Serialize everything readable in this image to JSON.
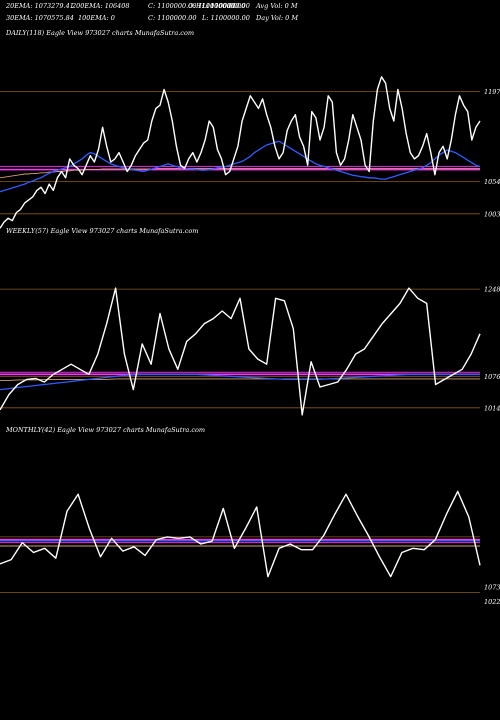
{
  "header": {
    "row1": [
      "20EMA: 1073279.41",
      "200EMA: 106408",
      "C: 1100000.00",
      "O: 1100000.00",
      "H: 1100000.00",
      "L: 1100000.00",
      "Avg Vol: 0  M"
    ],
    "row2": [
      "30EMA: 1070575.84",
      "100EMA: 0",
      "C: 1100000.00",
      "L: 1100000.00",
      "Day Vol: 0  M"
    ]
  },
  "panels": [
    {
      "label": "DAILY(118) Eagle   View  973027 charts MunafaSutra.com"
    },
    {
      "label": "WEEKLY(57) Eagle   View  973027 charts MunafaSutra.com"
    },
    {
      "label": "MONTHLY(42) Eagle   View  973027 charts MunafaSutra.com"
    }
  ],
  "colors": {
    "background": "#000000",
    "price": "#ffffff",
    "ema_blue": "#2f5cff",
    "ema_magenta": "#ff33ff",
    "ema_orange": "#d2a070",
    "grid": "#8a5a1a"
  },
  "chart_data": [
    {
      "type": "line",
      "ylim": [
        990,
        1215
      ],
      "yticks": [
        {
          "label": "1197",
          "value": 1197
        },
        {
          "label": "1054",
          "value": 1054
        },
        {
          "label": "1003",
          "value": 1003
        }
      ],
      "price": [
        980,
        990,
        996,
        992,
        1005,
        1010,
        1020,
        1025,
        1030,
        1040,
        1045,
        1035,
        1050,
        1040,
        1060,
        1070,
        1060,
        1090,
        1080,
        1075,
        1065,
        1080,
        1095,
        1085,
        1105,
        1140,
        1110,
        1085,
        1090,
        1100,
        1085,
        1070,
        1080,
        1095,
        1105,
        1115,
        1120,
        1150,
        1170,
        1175,
        1200,
        1180,
        1150,
        1110,
        1080,
        1075,
        1090,
        1100,
        1085,
        1100,
        1120,
        1150,
        1140,
        1105,
        1090,
        1065,
        1070,
        1090,
        1110,
        1150,
        1170,
        1190,
        1180,
        1170,
        1185,
        1160,
        1140,
        1110,
        1090,
        1100,
        1135,
        1150,
        1160,
        1125,
        1110,
        1080,
        1165,
        1155,
        1120,
        1140,
        1190,
        1180,
        1100,
        1080,
        1090,
        1120,
        1160,
        1140,
        1120,
        1080,
        1070,
        1150,
        1200,
        1220,
        1210,
        1170,
        1150,
        1200,
        1170,
        1130,
        1100,
        1090,
        1095,
        1110,
        1130,
        1100,
        1065,
        1100,
        1110,
        1090,
        1120,
        1160,
        1190,
        1175,
        1165,
        1120,
        1140,
        1150
      ],
      "ema_blue": [
        1038,
        1040,
        1042,
        1044,
        1046,
        1048,
        1050,
        1053,
        1055,
        1058,
        1060,
        1064,
        1067,
        1070,
        1072,
        1074,
        1076,
        1078,
        1082,
        1086,
        1090,
        1096,
        1100,
        1098,
        1094,
        1090,
        1086,
        1082,
        1080,
        1078,
        1076,
        1074,
        1073,
        1072,
        1071,
        1070,
        1072,
        1074,
        1076,
        1078,
        1080,
        1082,
        1080,
        1078,
        1076,
        1075,
        1074,
        1074,
        1073,
        1072,
        1072,
        1073,
        1074,
        1076,
        1077,
        1078,
        1080,
        1082,
        1084,
        1086,
        1090,
        1094,
        1100,
        1104,
        1108,
        1112,
        1114,
        1116,
        1118,
        1114,
        1110,
        1106,
        1102,
        1098,
        1094,
        1090,
        1086,
        1082,
        1080,
        1078,
        1076,
        1074,
        1072,
        1070,
        1068,
        1066,
        1064,
        1063,
        1062,
        1061,
        1060,
        1060,
        1059,
        1058,
        1058,
        1060,
        1062,
        1064,
        1066,
        1068,
        1070,
        1072,
        1074,
        1076,
        1080,
        1084,
        1090,
        1096,
        1100,
        1104,
        1102,
        1100,
        1096,
        1092,
        1088,
        1084,
        1080,
        1078
      ],
      "ema_orange": [
        1060,
        1061,
        1062,
        1063,
        1064,
        1065,
        1066,
        1066,
        1067,
        1067,
        1068,
        1068,
        1069,
        1069,
        1070,
        1070,
        1071,
        1071,
        1072,
        1072,
        1072,
        1073,
        1073,
        1073,
        1073,
        1074,
        1074,
        1074,
        1074,
        1074,
        1074,
        1074,
        1074,
        1074,
        1074,
        1074,
        1074,
        1074,
        1075,
        1075,
        1075,
        1075,
        1075,
        1075,
        1075,
        1075,
        1075,
        1075,
        1075,
        1075,
        1075,
        1075,
        1075,
        1075,
        1075,
        1075,
        1075,
        1075,
        1075,
        1075,
        1075,
        1075,
        1075,
        1075,
        1075,
        1075,
        1075,
        1075,
        1075,
        1075,
        1075,
        1075,
        1075,
        1075,
        1075,
        1075,
        1075,
        1075,
        1075,
        1075,
        1075,
        1075,
        1075,
        1075,
        1075,
        1075,
        1075,
        1075,
        1075,
        1075,
        1075,
        1075,
        1075,
        1075,
        1075,
        1075,
        1075,
        1075,
        1075,
        1075,
        1075,
        1075,
        1075,
        1075,
        1075,
        1075,
        1075,
        1075,
        1075,
        1075,
        1075,
        1075,
        1075,
        1075,
        1075,
        1075,
        1075,
        1075
      ],
      "ema_magenta_level": 1073,
      "ema_magenta2_level": 1078,
      "gridlines": [
        1197,
        1054,
        1003
      ]
    },
    {
      "type": "line",
      "ylim": [
        990,
        1270
      ],
      "yticks": [
        {
          "label": "1248",
          "value": 1248
        },
        {
          "label": "1076",
          "value": 1076
        },
        {
          "label": "1014",
          "value": 1014
        }
      ],
      "price": [
        1010,
        1040,
        1060,
        1070,
        1072,
        1065,
        1080,
        1090,
        1100,
        1090,
        1080,
        1120,
        1180,
        1250,
        1120,
        1050,
        1140,
        1100,
        1200,
        1130,
        1090,
        1145,
        1160,
        1180,
        1190,
        1205,
        1190,
        1230,
        1130,
        1110,
        1100,
        1230,
        1225,
        1170,
        1000,
        1105,
        1055,
        1060,
        1065,
        1090,
        1120,
        1130,
        1155,
        1180,
        1200,
        1220,
        1250,
        1230,
        1220,
        1060,
        1070,
        1080,
        1090,
        1120,
        1160
      ],
      "ema_blue": [
        1050,
        1052,
        1054,
        1056,
        1058,
        1060,
        1062,
        1064,
        1066,
        1068,
        1070,
        1072,
        1074,
        1076,
        1078,
        1079,
        1080,
        1080,
        1080,
        1080,
        1080,
        1080,
        1080,
        1079,
        1078,
        1077,
        1076,
        1075,
        1074,
        1073,
        1072,
        1071,
        1070,
        1070,
        1070,
        1070,
        1070,
        1071,
        1072,
        1073,
        1074,
        1075,
        1076,
        1077,
        1078,
        1079,
        1080,
        1080,
        1080,
        1080,
        1080,
        1080,
        1080,
        1080,
        1080
      ],
      "ema_orange": [
        1068,
        1068,
        1069,
        1069,
        1069,
        1070,
        1070,
        1070,
        1070,
        1070,
        1070,
        1070,
        1070,
        1071,
        1071,
        1071,
        1071,
        1071,
        1071,
        1071,
        1071,
        1071,
        1071,
        1071,
        1071,
        1071,
        1071,
        1071,
        1071,
        1071,
        1071,
        1071,
        1071,
        1071,
        1071,
        1071,
        1071,
        1071,
        1071,
        1071,
        1071,
        1071,
        1071,
        1071,
        1071,
        1071,
        1071,
        1071,
        1071,
        1071,
        1071,
        1071,
        1071,
        1071,
        1071
      ],
      "ema_magenta_level": 1080,
      "ema_magenta2_level": 1084,
      "gridlines": [
        1248,
        1076,
        1014
      ]
    },
    {
      "type": "line",
      "ylim": [
        1000,
        1450
      ],
      "yticks": [
        {
          "label": "1073",
          "value": 1073
        },
        {
          "label": "1022",
          "value": 1022
        }
      ],
      "price": [
        1155,
        1170,
        1230,
        1195,
        1210,
        1175,
        1340,
        1400,
        1280,
        1180,
        1245,
        1200,
        1215,
        1185,
        1240,
        1250,
        1245,
        1250,
        1225,
        1235,
        1350,
        1210,
        1280,
        1355,
        1110,
        1210,
        1225,
        1205,
        1205,
        1255,
        1330,
        1400,
        1325,
        1255,
        1180,
        1110,
        1195,
        1210,
        1205,
        1240,
        1330,
        1410,
        1320,
        1150
      ],
      "ema_blue": [
        1236,
        1236,
        1236,
        1236,
        1236,
        1236,
        1236,
        1236,
        1236,
        1236,
        1236,
        1236,
        1236,
        1236,
        1236,
        1236,
        1236,
        1236,
        1236,
        1236,
        1236,
        1236,
        1236,
        1236,
        1236,
        1236,
        1236,
        1236,
        1236,
        1236,
        1236,
        1236,
        1236,
        1236,
        1236,
        1236,
        1236,
        1236,
        1236,
        1236,
        1236,
        1236,
        1236,
        1236
      ],
      "ema_orange": [
        1218,
        1218,
        1218,
        1218,
        1218,
        1218,
        1218,
        1218,
        1218,
        1218,
        1218,
        1218,
        1218,
        1218,
        1218,
        1218,
        1218,
        1218,
        1218,
        1218,
        1218,
        1218,
        1218,
        1218,
        1218,
        1218,
        1218,
        1218,
        1218,
        1218,
        1218,
        1218,
        1218,
        1218,
        1218,
        1218,
        1218,
        1218,
        1218,
        1218,
        1218,
        1218,
        1218,
        1218
      ],
      "ema_magenta_level": 1240,
      "ema_magenta2_level": 1230,
      "gridlines": [
        1250,
        1055
      ]
    }
  ]
}
